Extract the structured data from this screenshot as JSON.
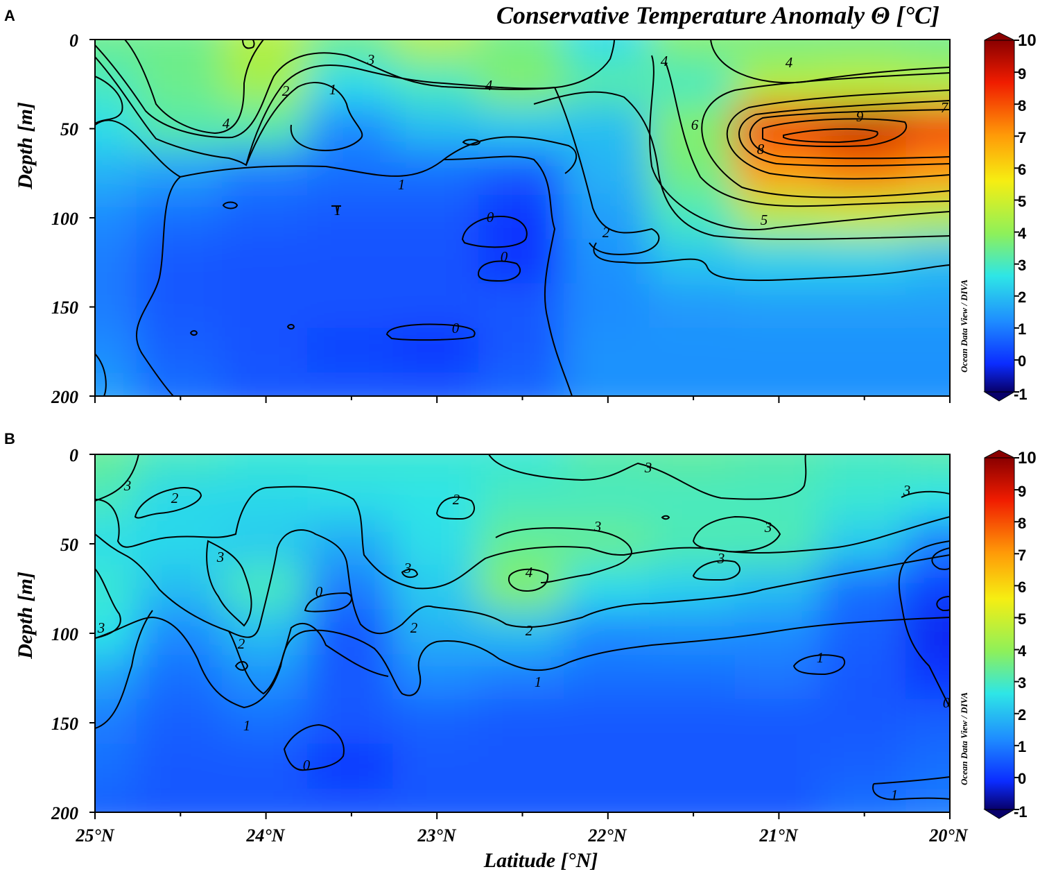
{
  "figure": {
    "title": "Conservative Temperature Anomaly Θ [°C]",
    "credit": "Ocean Data View / DIVA",
    "x_axis_label": "Latitude [°N]",
    "y_axis_label": "Depth [m]",
    "x_ticks": [
      "25°N",
      "24°N",
      "23°N",
      "22°N",
      "21°N",
      "20°N"
    ],
    "y_ticks": [
      "0",
      "50",
      "100",
      "150",
      "200"
    ],
    "colorbar_ticks": [
      "10",
      "9",
      "8",
      "7",
      "6",
      "5",
      "4",
      "3",
      "2",
      "1",
      "0",
      "-1"
    ],
    "colormap": [
      "#08006a",
      "#0b2cff",
      "#1e8cff",
      "#2ee6e6",
      "#8ef05a",
      "#f6ee12",
      "#ff9a08",
      "#f01c00",
      "#8a0000"
    ]
  },
  "chart_data": [
    {
      "panel": "A",
      "type": "heatmap",
      "title": "Conservative Temperature Anomaly Θ [°C]",
      "xlabel": "Latitude [°N]",
      "ylabel": "Depth [m]",
      "xlim": [
        25,
        20
      ],
      "ylim": [
        200,
        0
      ],
      "zlim": [
        -1,
        10
      ],
      "grid": "off",
      "x_latitudes": [
        25.0,
        24.5,
        24.0,
        23.5,
        23.0,
        22.5,
        22.0,
        21.5,
        21.0,
        20.5,
        20.0
      ],
      "y_depths": [
        0,
        25,
        50,
        75,
        100,
        125,
        150,
        175,
        200
      ],
      "values": [
        [
          3.5,
          3.5,
          4.5,
          3.5,
          4.5,
          3.5,
          2.5,
          3.8,
          3.6,
          3.6,
          3.5
        ],
        [
          3.0,
          3.5,
          4.3,
          2.5,
          3.0,
          3.8,
          3.2,
          3.0,
          4.5,
          4.7,
          4.5
        ],
        [
          2.5,
          3.2,
          3.2,
          1.2,
          2.0,
          2.2,
          2.0,
          3.8,
          8.5,
          9.2,
          8.5
        ],
        [
          1.8,
          1.5,
          1.0,
          0.8,
          0.8,
          0.5,
          1.8,
          3.6,
          7.0,
          7.5,
          7.0
        ],
        [
          1.2,
          0.8,
          0.6,
          0.5,
          0.5,
          0.0,
          1.5,
          3.0,
          4.5,
          4.8,
          4.5
        ],
        [
          1.0,
          0.5,
          0.4,
          0.4,
          0.4,
          0.0,
          1.3,
          2.1,
          2.3,
          2.3,
          2.0
        ],
        [
          1.0,
          0.5,
          0.4,
          0.4,
          0.4,
          0.5,
          1.2,
          1.4,
          1.5,
          1.5,
          1.5
        ],
        [
          1.2,
          0.6,
          0.4,
          0.2,
          0.0,
          0.5,
          1.3,
          1.3,
          1.3,
          1.3,
          1.3
        ],
        [
          1.5,
          0.8,
          0.5,
          0.5,
          0.5,
          0.7,
          1.3,
          1.3,
          1.3,
          1.3,
          1.3
        ]
      ],
      "contour_labels": [
        "3",
        "4",
        "4",
        "2",
        "1",
        "4",
        "4",
        "6",
        "9",
        "7",
        "8",
        "1",
        "1",
        "0",
        "0",
        "2",
        "5",
        "0"
      ]
    },
    {
      "panel": "B",
      "type": "heatmap",
      "xlabel": "Latitude [°N]",
      "ylabel": "Depth [m]",
      "xlim": [
        25,
        20
      ],
      "ylim": [
        200,
        0
      ],
      "zlim": [
        -1,
        10
      ],
      "grid": "off",
      "x_latitudes": [
        25.0,
        24.5,
        24.0,
        23.5,
        23.0,
        22.5,
        22.0,
        21.5,
        21.0,
        20.5,
        20.0
      ],
      "y_depths": [
        0,
        25,
        50,
        75,
        100,
        125,
        150,
        175,
        200
      ],
      "values": [
        [
          3.4,
          3.0,
          2.8,
          2.8,
          2.8,
          2.8,
          3.2,
          3.3,
          3.2,
          3.0,
          3.2
        ],
        [
          3.0,
          2.4,
          2.4,
          2.5,
          2.6,
          3.0,
          3.0,
          3.0,
          3.0,
          2.8,
          2.6
        ],
        [
          2.5,
          2.4,
          2.2,
          1.7,
          2.5,
          3.4,
          3.4,
          3.1,
          3.1,
          2.2,
          1.0
        ],
        [
          2.8,
          2.0,
          3.0,
          1.0,
          2.2,
          3.8,
          2.5,
          2.3,
          2.0,
          0.8,
          0.2
        ],
        [
          2.6,
          1.2,
          2.0,
          0.5,
          1.8,
          2.0,
          1.2,
          1.3,
          1.2,
          0.6,
          -0.2
        ],
        [
          1.6,
          0.8,
          1.3,
          0.5,
          1.2,
          1.0,
          0.8,
          0.8,
          0.9,
          0.5,
          0.0
        ],
        [
          1.0,
          0.6,
          0.8,
          0.5,
          0.6,
          0.5,
          0.5,
          0.5,
          0.5,
          0.5,
          0.6
        ],
        [
          0.8,
          0.5,
          0.5,
          0.0,
          0.5,
          0.5,
          0.5,
          0.5,
          0.5,
          0.6,
          0.8
        ],
        [
          0.6,
          0.5,
          0.5,
          0.5,
          0.5,
          0.5,
          0.5,
          0.5,
          0.5,
          0.8,
          1.0
        ]
      ],
      "contour_labels": [
        "3",
        "2",
        "3",
        "3",
        "3",
        "2",
        "2",
        "0",
        "3",
        "2",
        "4",
        "2",
        "1",
        "3",
        "3",
        "3",
        "3",
        "1",
        "1",
        "1",
        "0",
        "0"
      ]
    }
  ]
}
